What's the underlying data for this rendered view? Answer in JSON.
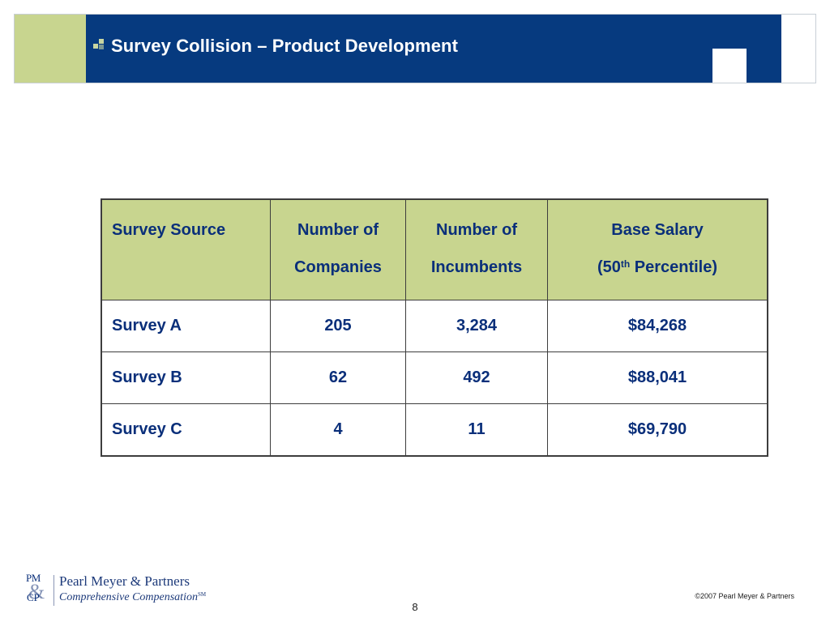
{
  "slide": {
    "title": "Survey Collision – Product Development"
  },
  "table": {
    "headers": {
      "source": "Survey Source",
      "companies": [
        "Number of",
        "Companies"
      ],
      "incumbents": [
        "Number of",
        "Incumbents"
      ],
      "salary_line1": "Base Salary",
      "salary_line2_open": "(50",
      "salary_sup": "th",
      "salary_line2_close": " Percentile)"
    },
    "rows": [
      {
        "source": "Survey A",
        "companies": "205",
        "incumbents": "3,284",
        "salary": "$84,268"
      },
      {
        "source": "Survey B",
        "companies": "62",
        "incumbents": "492",
        "salary": "$88,041"
      },
      {
        "source": "Survey C",
        "companies": "4",
        "incumbents": "11",
        "salary": "$69,790"
      }
    ]
  },
  "footer": {
    "logo_pm": "PM",
    "logo_cp": "CP",
    "logo_amp": "&",
    "company_name": "Pearl Meyer & Partners",
    "tagline": "Comprehensive Compensation",
    "tagline_tm": "SM",
    "copyright": "©2007 Pearl Meyer & Partners",
    "page_number": "8"
  },
  "colors": {
    "navy": "#063a7f",
    "header_green": "#c8d58f",
    "text_blue": "#0a2f7a"
  }
}
